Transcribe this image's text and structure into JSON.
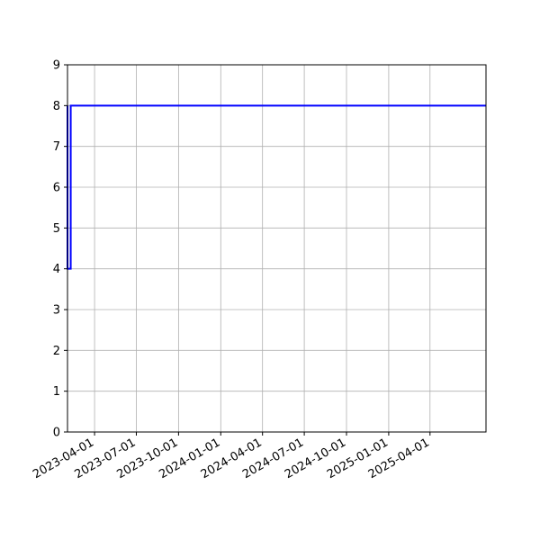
{
  "chart_data": {
    "type": "line",
    "title": "",
    "xlabel": "",
    "ylabel": "",
    "grid": true,
    "x_axis": {
      "scale": "date",
      "range": [
        "2023-02-01",
        "2025-08-01"
      ],
      "ticks": [
        "2023-04-01",
        "2023-07-01",
        "2023-10-01",
        "2024-01-01",
        "2024-04-01",
        "2024-07-01",
        "2024-10-01",
        "2025-01-01",
        "2025-04-01"
      ]
    },
    "y_axis": {
      "range": [
        0,
        9
      ],
      "ticks": [
        0,
        1,
        2,
        3,
        4,
        5,
        6,
        7,
        8,
        9
      ]
    },
    "series": [
      {
        "color": "#0000ff",
        "points": [
          {
            "x": "2023-02-01",
            "y": 8
          },
          {
            "x": "2023-02-01",
            "y": 4
          },
          {
            "x": "2023-02-08",
            "y": 4
          },
          {
            "x": "2023-02-08",
            "y": 8
          },
          {
            "x": "2025-08-01",
            "y": 8
          }
        ]
      }
    ]
  }
}
